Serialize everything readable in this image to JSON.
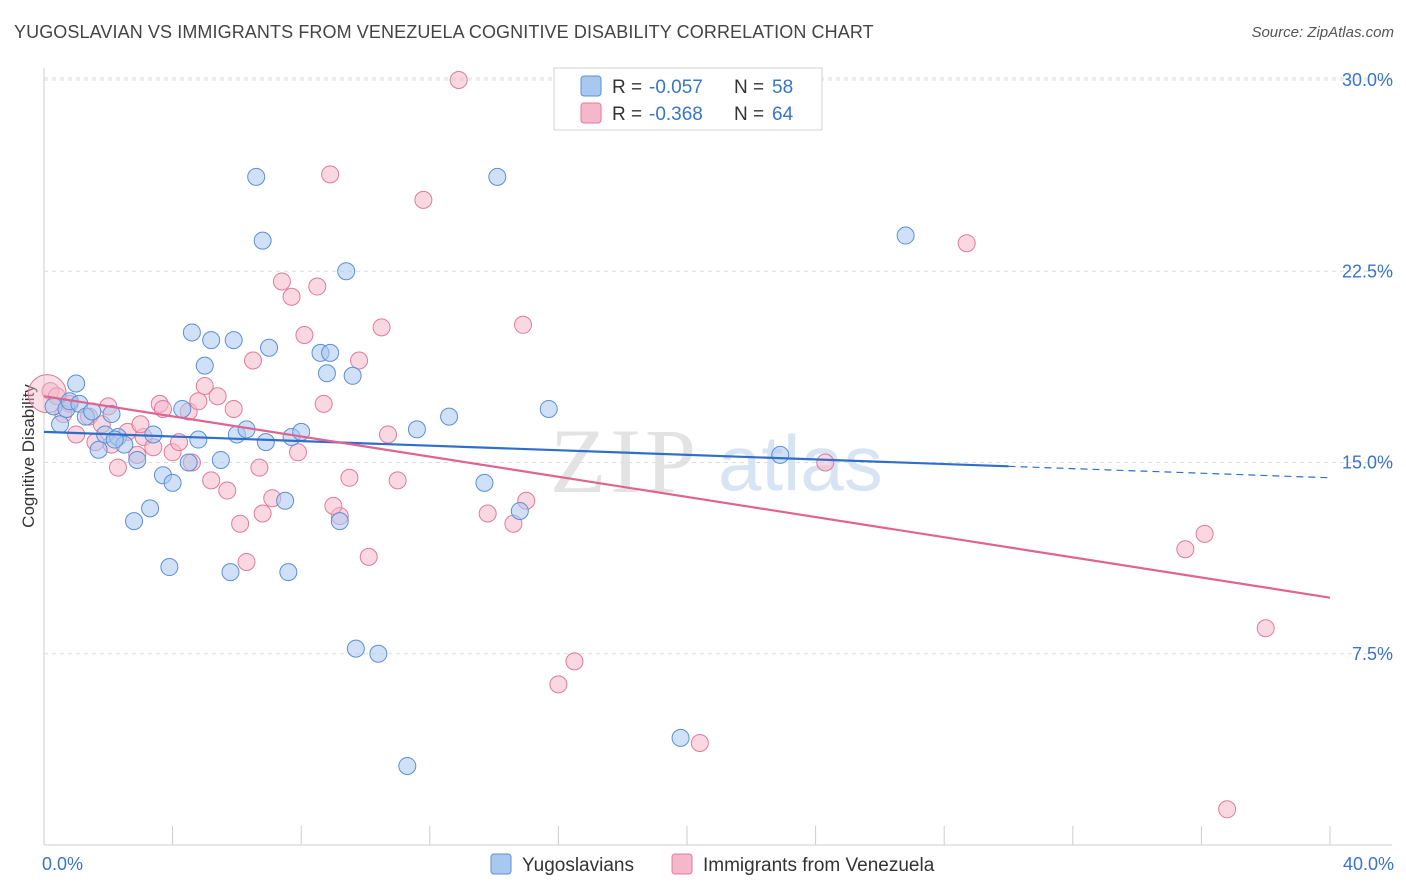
{
  "header": {
    "title": "YUGOSLAVIAN VS IMMIGRANTS FROM VENEZUELA COGNITIVE DISABILITY CORRELATION CHART",
    "source": "Source: ZipAtlas.com"
  },
  "watermark": {
    "zip": "ZIP",
    "atlas": "atlas"
  },
  "legend": {
    "r_label": "R =",
    "n_label": "N =",
    "series1": {
      "r": "-0.057",
      "n": "58"
    },
    "series2": {
      "r": "-0.368",
      "n": "64"
    }
  },
  "bottom_legend": {
    "series1": "Yugoslavians",
    "series2": "Immigrants from Venezuela"
  },
  "colors": {
    "blue_fill": "#a9c8f0",
    "blue_stroke": "#5b8fd6",
    "blue_line": "#2f6fcb",
    "pink_fill": "#f5b8ca",
    "pink_stroke": "#e07a9c",
    "pink_line": "#e0648e",
    "tick_text": "#3a74c7"
  },
  "chart_data": {
    "type": "scatter",
    "title": "YUGOSLAVIAN VS IMMIGRANTS FROM VENEZUELA COGNITIVE DISABILITY CORRELATION CHART",
    "xlabel": "",
    "ylabel": "Cognitive Disability",
    "xlim": [
      0,
      40
    ],
    "ylim": [
      0,
      30
    ],
    "x_tick_labels": [
      "0.0%",
      "40.0%"
    ],
    "y_ticks": [
      7.5,
      15.0,
      22.5,
      30.0
    ],
    "y_tick_labels": [
      "7.5%",
      "15.0%",
      "22.5%",
      "30.0%"
    ],
    "grid": "horizontal dashed",
    "legend_placement": "top-center",
    "series": [
      {
        "name": "Yugoslavians",
        "r": -0.057,
        "n": 58,
        "trend": {
          "x": [
            0,
            30,
            40
          ],
          "y": [
            16.2,
            14.85,
            14.4
          ],
          "solid_until": 30
        },
        "points": [
          [
            0.3,
            17.2
          ],
          [
            0.5,
            16.5
          ],
          [
            0.7,
            17.1
          ],
          [
            0.8,
            17.4
          ],
          [
            1.0,
            18.1
          ],
          [
            1.1,
            17.3
          ],
          [
            1.3,
            16.8
          ],
          [
            1.5,
            17.0
          ],
          [
            1.7,
            15.5
          ],
          [
            1.9,
            16.1
          ],
          [
            2.1,
            16.9
          ],
          [
            2.3,
            16.0
          ],
          [
            2.5,
            15.7
          ],
          [
            2.9,
            15.1
          ],
          [
            2.8,
            12.7
          ],
          [
            3.3,
            13.2
          ],
          [
            3.7,
            14.5
          ],
          [
            4.0,
            14.2
          ],
          [
            4.3,
            17.1
          ],
          [
            4.5,
            15.0
          ],
          [
            3.9,
            10.9
          ],
          [
            4.6,
            20.1
          ],
          [
            5.2,
            19.8
          ],
          [
            5.9,
            19.8
          ],
          [
            5.5,
            15.1
          ],
          [
            5.8,
            10.7
          ],
          [
            6.0,
            16.1
          ],
          [
            6.3,
            16.3
          ],
          [
            6.6,
            26.2
          ],
          [
            6.8,
            23.7
          ],
          [
            7.0,
            19.5
          ],
          [
            7.5,
            13.5
          ],
          [
            7.7,
            16.0
          ],
          [
            8.0,
            16.2
          ],
          [
            7.6,
            10.7
          ],
          [
            8.6,
            19.3
          ],
          [
            8.8,
            18.5
          ],
          [
            8.9,
            19.3
          ],
          [
            9.4,
            22.5
          ],
          [
            9.2,
            12.7
          ],
          [
            9.6,
            18.4
          ],
          [
            9.7,
            7.7
          ],
          [
            10.4,
            7.5
          ],
          [
            11.3,
            3.1
          ],
          [
            11.6,
            16.3
          ],
          [
            12.6,
            16.8
          ],
          [
            13.7,
            14.2
          ],
          [
            14.1,
            26.2
          ],
          [
            14.8,
            13.1
          ],
          [
            15.7,
            17.1
          ],
          [
            19.8,
            4.2
          ],
          [
            22.9,
            15.3
          ],
          [
            26.8,
            23.9
          ],
          [
            5.0,
            18.8
          ],
          [
            3.4,
            16.1
          ],
          [
            4.8,
            15.9
          ],
          [
            2.2,
            15.9
          ],
          [
            6.9,
            15.8
          ]
        ]
      },
      {
        "name": "Immigrants from Venezuela",
        "r": -0.368,
        "n": 64,
        "trend": {
          "x": [
            0,
            40
          ],
          "y": [
            17.6,
            9.7
          ]
        },
        "points": [
          [
            0.2,
            17.8
          ],
          [
            0.4,
            17.6
          ],
          [
            0.8,
            17.3
          ],
          [
            1.0,
            16.1
          ],
          [
            1.4,
            16.8
          ],
          [
            1.6,
            15.8
          ],
          [
            1.8,
            16.5
          ],
          [
            2.1,
            15.7
          ],
          [
            2.3,
            14.8
          ],
          [
            2.6,
            16.2
          ],
          [
            2.9,
            15.3
          ],
          [
            3.1,
            16.0
          ],
          [
            3.4,
            15.6
          ],
          [
            3.6,
            17.3
          ],
          [
            3.7,
            17.1
          ],
          [
            4.0,
            15.4
          ],
          [
            4.2,
            15.8
          ],
          [
            4.5,
            17.0
          ],
          [
            4.8,
            17.4
          ],
          [
            5.0,
            18.0
          ],
          [
            5.2,
            14.3
          ],
          [
            5.4,
            17.6
          ],
          [
            5.7,
            13.9
          ],
          [
            5.9,
            17.1
          ],
          [
            6.1,
            12.6
          ],
          [
            6.3,
            11.1
          ],
          [
            6.5,
            19.0
          ],
          [
            6.8,
            13.0
          ],
          [
            7.1,
            13.6
          ],
          [
            7.4,
            22.1
          ],
          [
            7.7,
            21.5
          ],
          [
            7.9,
            15.4
          ],
          [
            8.1,
            20.0
          ],
          [
            8.5,
            21.9
          ],
          [
            8.7,
            17.3
          ],
          [
            8.9,
            26.3
          ],
          [
            9.2,
            12.9
          ],
          [
            9.5,
            14.4
          ],
          [
            9.8,
            19.0
          ],
          [
            10.1,
            11.3
          ],
          [
            10.5,
            20.3
          ],
          [
            10.7,
            16.1
          ],
          [
            11.0,
            14.3
          ],
          [
            11.8,
            25.3
          ],
          [
            12.9,
            30.0
          ],
          [
            13.8,
            13.0
          ],
          [
            14.6,
            12.6
          ],
          [
            14.9,
            20.4
          ],
          [
            16.0,
            6.3
          ],
          [
            16.5,
            7.2
          ],
          [
            20.4,
            4.0
          ],
          [
            24.3,
            15.0
          ],
          [
            28.7,
            23.6
          ],
          [
            35.5,
            11.6
          ],
          [
            36.1,
            12.2
          ],
          [
            38.0,
            8.5
          ],
          [
            36.8,
            1.4
          ],
          [
            0.6,
            16.9
          ],
          [
            3.0,
            16.5
          ],
          [
            2.0,
            17.2
          ],
          [
            4.6,
            15.0
          ],
          [
            6.7,
            14.8
          ],
          [
            9.0,
            13.3
          ],
          [
            15.0,
            13.5
          ]
        ]
      }
    ]
  }
}
